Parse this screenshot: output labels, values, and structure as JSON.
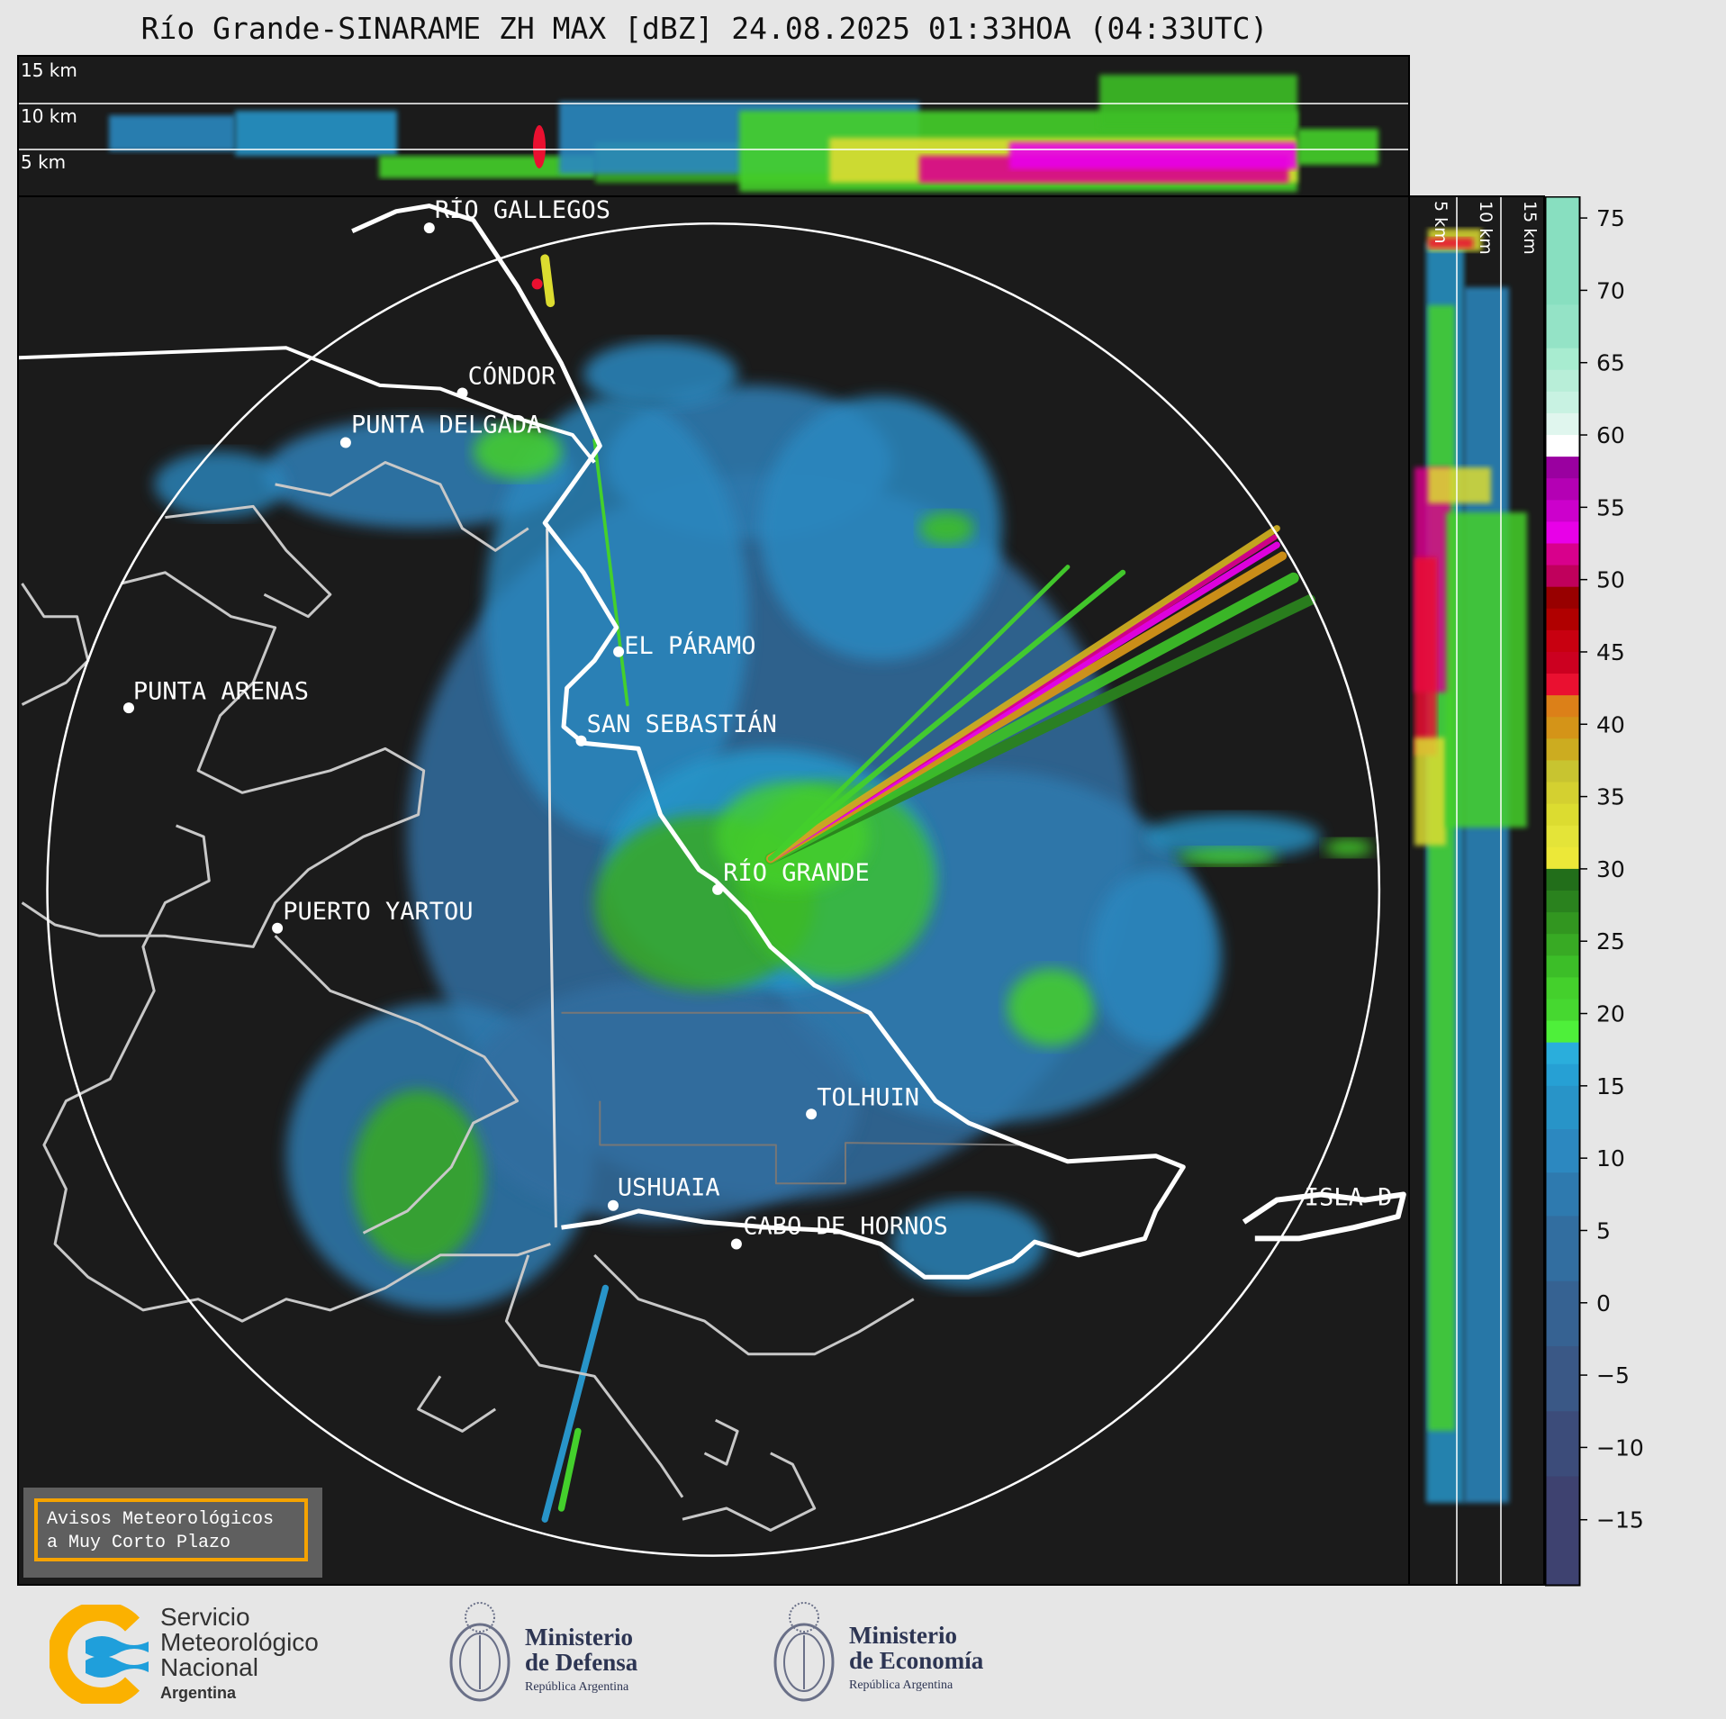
{
  "title": "Río Grande-SINARAME ZH MAX [dBZ] 24.08.2025 01:33HOA (04:33UTC)",
  "top_panel": {
    "altitude_labels": [
      "15 km",
      "10 km",
      "5 km"
    ]
  },
  "side_panel": {
    "altitude_labels": [
      "5 km",
      "10 km",
      "15 km"
    ]
  },
  "map": {
    "cities": [
      {
        "name": "RÍO GALLEGOS"
      },
      {
        "name": "CÓNDOR"
      },
      {
        "name": "PUNTA DELGADA"
      },
      {
        "name": "EL PÁRAMO"
      },
      {
        "name": "PUNTA ARENAS"
      },
      {
        "name": "SAN SEBASTIÁN"
      },
      {
        "name": "RÍO GRANDE"
      },
      {
        "name": "PUERTO YARTOU"
      },
      {
        "name": "TOLHUIN"
      },
      {
        "name": "USHUAIA"
      },
      {
        "name": "CABO DE HORNOS"
      },
      {
        "name": "ISLA D"
      }
    ],
    "range_ring": true
  },
  "warning_box": {
    "line1": "Avisos Meteorológicos",
    "line2": "a Muy Corto Plazo",
    "border_color": "#f5a300"
  },
  "colorbar": {
    "unit": "dBZ",
    "range": [
      -19.5,
      76.5
    ],
    "ticks": [
      {
        "value": 75,
        "label": "75"
      },
      {
        "value": 70,
        "label": "70"
      },
      {
        "value": 65,
        "label": "65"
      },
      {
        "value": 60,
        "label": "60"
      },
      {
        "value": 55,
        "label": "55"
      },
      {
        "value": 50,
        "label": "50"
      },
      {
        "value": 45,
        "label": "45"
      },
      {
        "value": 40,
        "label": "40"
      },
      {
        "value": 35,
        "label": "35"
      },
      {
        "value": 30,
        "label": "30"
      },
      {
        "value": 25,
        "label": "25"
      },
      {
        "value": 20,
        "label": "20"
      },
      {
        "value": 15,
        "label": "15"
      },
      {
        "value": 10,
        "label": "10"
      },
      {
        "value": 5,
        "label": "5"
      },
      {
        "value": 0,
        "label": "0"
      },
      {
        "value": -5,
        "label": "−5"
      },
      {
        "value": -10,
        "label": "−10"
      },
      {
        "value": -15,
        "label": "−15"
      }
    ],
    "bands": [
      {
        "from": 69,
        "to": 76.5,
        "color": "#88dfc0"
      },
      {
        "from": 66,
        "to": 69,
        "color": "#94e3c6"
      },
      {
        "from": 64.5,
        "to": 66,
        "color": "#a8ecd0"
      },
      {
        "from": 63,
        "to": 64.5,
        "color": "#b8eed8"
      },
      {
        "from": 61.5,
        "to": 63,
        "color": "#c8f2e2"
      },
      {
        "from": 60,
        "to": 61.5,
        "color": "#e0f6ee"
      },
      {
        "from": 58.5,
        "to": 60,
        "color": "#ffffff"
      },
      {
        "from": 57,
        "to": 58.5,
        "color": "#9a00a0"
      },
      {
        "from": 55.5,
        "to": 57,
        "color": "#b400b4"
      },
      {
        "from": 54,
        "to": 55.5,
        "color": "#cc00cc"
      },
      {
        "from": 52.5,
        "to": 54,
        "color": "#e800e8"
      },
      {
        "from": 51,
        "to": 52.5,
        "color": "#d8008c"
      },
      {
        "from": 49.5,
        "to": 51,
        "color": "#c0005c"
      },
      {
        "from": 48,
        "to": 49.5,
        "color": "#980000"
      },
      {
        "from": 46.5,
        "to": 48,
        "color": "#b00000"
      },
      {
        "from": 45,
        "to": 46.5,
        "color": "#c80010"
      },
      {
        "from": 43.5,
        "to": 45,
        "color": "#cc0020"
      },
      {
        "from": 42,
        "to": 43.5,
        "color": "#ea1030"
      },
      {
        "from": 40.5,
        "to": 42,
        "color": "#dc8018"
      },
      {
        "from": 39,
        "to": 40.5,
        "color": "#d49418"
      },
      {
        "from": 37.5,
        "to": 39,
        "color": "#ccac20"
      },
      {
        "from": 36,
        "to": 37.5,
        "color": "#c8c430"
      },
      {
        "from": 34.5,
        "to": 36,
        "color": "#d4d030"
      },
      {
        "from": 33,
        "to": 34.5,
        "color": "#dcdc30"
      },
      {
        "from": 31.5,
        "to": 33,
        "color": "#e4e438"
      },
      {
        "from": 30,
        "to": 31.5,
        "color": "#ece838"
      },
      {
        "from": 28.5,
        "to": 30,
        "color": "#226e1a"
      },
      {
        "from": 27,
        "to": 28.5,
        "color": "#2a821e"
      },
      {
        "from": 25.5,
        "to": 27,
        "color": "#329620"
      },
      {
        "from": 24,
        "to": 25.5,
        "color": "#38aa24"
      },
      {
        "from": 22.5,
        "to": 24,
        "color": "#3cbe28"
      },
      {
        "from": 21,
        "to": 22.5,
        "color": "#44d02c"
      },
      {
        "from": 19.5,
        "to": 21,
        "color": "#46d830"
      },
      {
        "from": 18,
        "to": 19.5,
        "color": "#4ef03a"
      },
      {
        "from": 16.5,
        "to": 18,
        "color": "#2aaedc"
      },
      {
        "from": 15,
        "to": 16.5,
        "color": "#26a0d4"
      },
      {
        "from": 12,
        "to": 15,
        "color": "#2894c8"
      },
      {
        "from": 9,
        "to": 12,
        "color": "#2c88c0"
      },
      {
        "from": 6,
        "to": 9,
        "color": "#2e7aaf"
      },
      {
        "from": 1.5,
        "to": 6,
        "color": "#326ea0"
      },
      {
        "from": -3,
        "to": 1.5,
        "color": "#366292"
      },
      {
        "from": -7.5,
        "to": -3,
        "color": "#3a5886"
      },
      {
        "from": -12,
        "to": -7.5,
        "color": "#3c4c7a"
      },
      {
        "from": -19.5,
        "to": -12,
        "color": "#3e4270"
      }
    ]
  },
  "footer": {
    "smn": {
      "line1": "Servicio",
      "line2": "Meteorológico",
      "line3": "Nacional",
      "line4": "Argentina"
    },
    "defensa": {
      "line1": "Ministerio",
      "line2": "de Defensa",
      "line3": "República Argentina"
    },
    "economia": {
      "line1": "Ministerio",
      "line2": "de Economía",
      "line3": "República Argentina"
    }
  }
}
